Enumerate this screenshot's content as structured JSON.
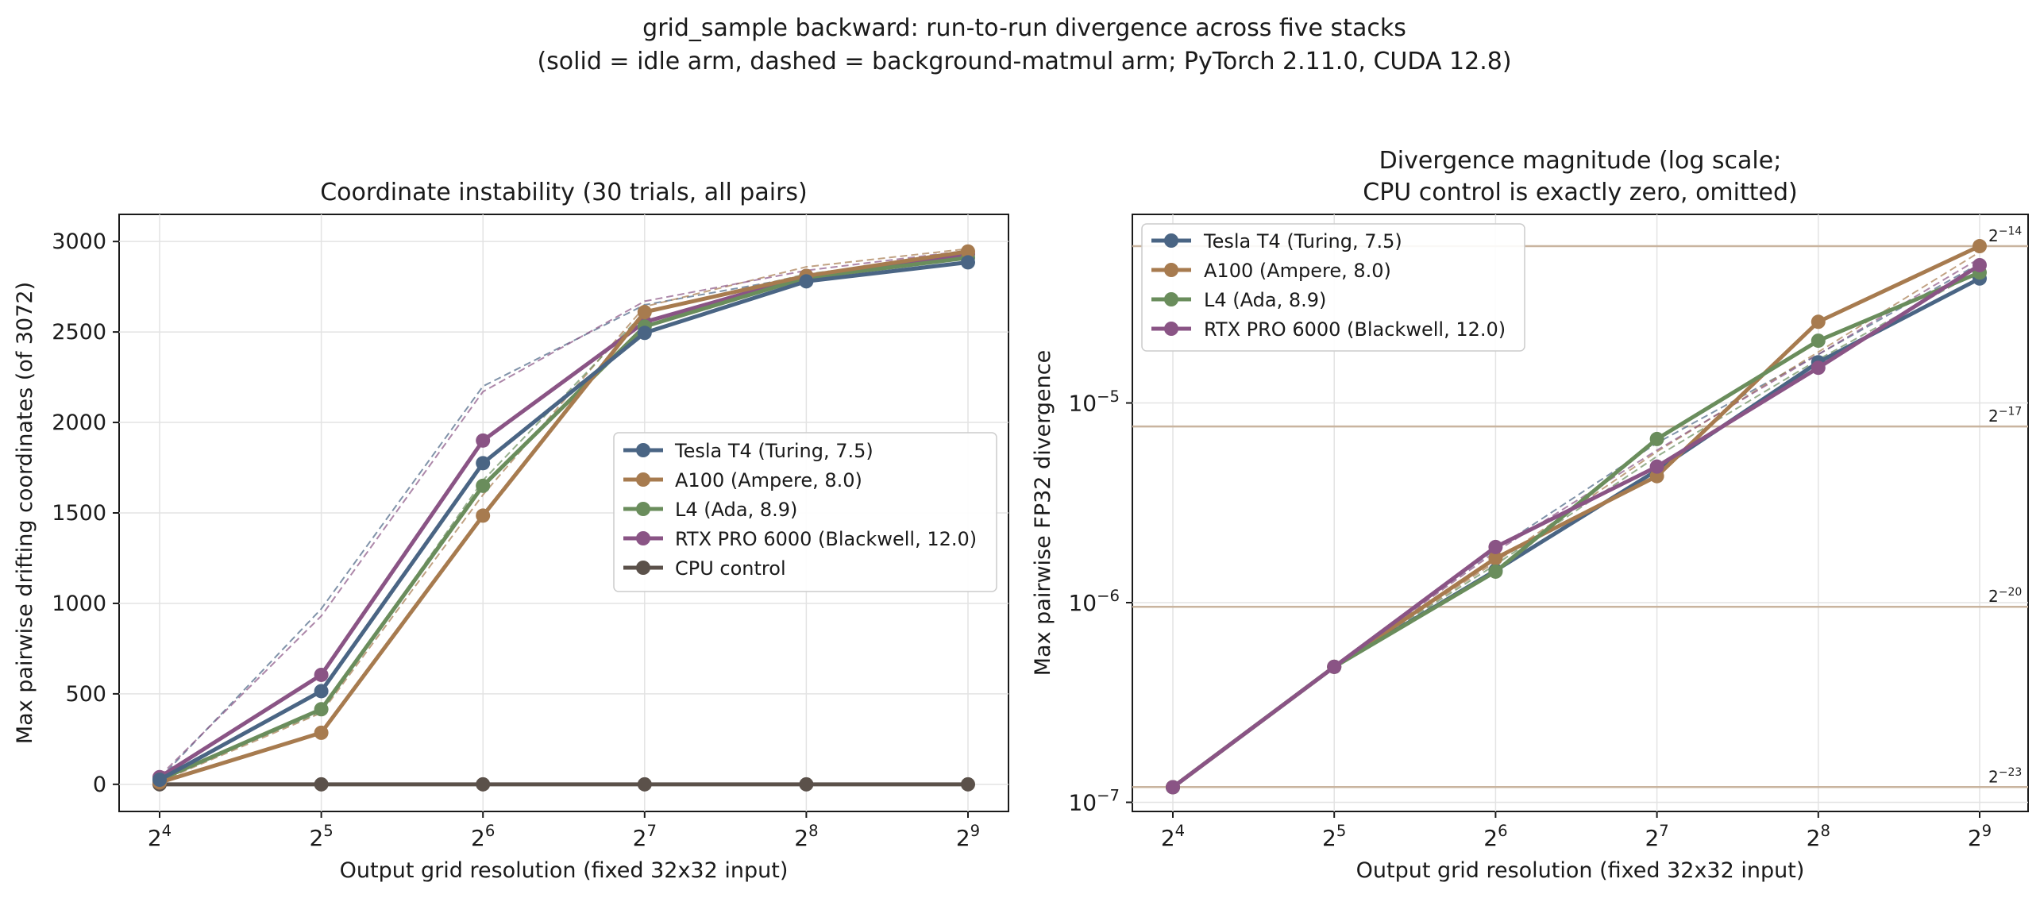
{
  "figure": {
    "title_line1": "grid_sample backward: run-to-run divergence across five stacks",
    "title_line2": "(solid = idle arm, dashed = background-matmul arm; PyTorch 2.11.0, CUDA 12.8)"
  },
  "chart_data": [
    {
      "type": "line",
      "title": "Coordinate instability (30 trials, all pairs)",
      "xlabel": "Output grid resolution (fixed 32x32 input)",
      "ylabel": "Max pairwise drifting coordinates (of 3072)",
      "x_exponents": [
        4,
        5,
        6,
        7,
        8,
        9
      ],
      "x": [
        16,
        32,
        64,
        128,
        256,
        512
      ],
      "xscale": "log2",
      "ylim": [
        -150,
        3150
      ],
      "yticks": [
        0,
        500,
        1000,
        1500,
        2000,
        2500,
        3000
      ],
      "grid": true,
      "legend_position": "center-right",
      "series": [
        {
          "name": "Tesla T4 (Turing, 7.5)",
          "color": "#4a6584",
          "values": [
            25,
            515,
            1775,
            2495,
            2780,
            2885
          ],
          "dashed_values": [
            30,
            970,
            2200,
            2650,
            2810,
            2920
          ]
        },
        {
          "name": "A100 (Ampere, 8.0)",
          "color": "#a77b4f",
          "values": [
            10,
            285,
            1485,
            2610,
            2810,
            2945
          ],
          "dashed_values": [
            15,
            395,
            1600,
            2640,
            2860,
            2960
          ]
        },
        {
          "name": "L4 (Ada, 8.9)",
          "color": "#6a8d5c",
          "values": [
            25,
            415,
            1650,
            2530,
            2800,
            2910
          ],
          "dashed_values": [
            30,
            400,
            1680,
            2610,
            2820,
            2930
          ]
        },
        {
          "name": "RTX PRO 6000 (Blackwell, 12.0)",
          "color": "#8a5485",
          "values": [
            40,
            605,
            1900,
            2555,
            2810,
            2930
          ],
          "dashed_values": [
            45,
            930,
            2170,
            2670,
            2840,
            2950
          ]
        },
        {
          "name": "CPU control",
          "color": "#5b514a",
          "values": [
            0,
            0,
            0,
            0,
            0,
            0
          ],
          "dashed_values": [
            0,
            0,
            0,
            0,
            0,
            0
          ]
        }
      ]
    },
    {
      "type": "line",
      "title_line1": "Divergence magnitude (log scale;",
      "title_line2": "CPU control is exactly zero, omitted)",
      "xlabel": "Output grid resolution (fixed 32x32 input)",
      "ylabel": "Max pairwise FP32 divergence",
      "x_exponents": [
        4,
        5,
        6,
        7,
        8,
        9
      ],
      "x": [
        16,
        32,
        64,
        128,
        256,
        512
      ],
      "xscale": "log2",
      "yscale": "log10",
      "ylim": [
        9e-08,
        8.8e-05
      ],
      "yticks_exp": [
        -7,
        -6,
        -5
      ],
      "reference_lines": [
        {
          "base": "2",
          "exponent": "−14",
          "value": 6.1035e-05
        },
        {
          "base": "2",
          "exponent": "−17",
          "value": 7.6294e-06
        },
        {
          "base": "2",
          "exponent": "−20",
          "value": 9.5367e-07
        },
        {
          "base": "2",
          "exponent": "−23",
          "value": 1.1921e-07
        }
      ],
      "reference_color": "#c9b49f",
      "grid": true,
      "legend_position": "top-left",
      "series": [
        {
          "name": "Tesla T4 (Turing, 7.5)",
          "color": "#4a6584",
          "values": [
            1.19e-07,
            4.77e-07,
            1.45e-06,
            4.6e-06,
            1.6e-05,
            4.2e-05
          ],
          "dashed_values": [
            1.19e-07,
            4.77e-07,
            1.85e-06,
            6.3e-06,
            1.75e-05,
            5e-05
          ]
        },
        {
          "name": "A100 (Ampere, 8.0)",
          "color": "#a77b4f",
          "values": [
            1.19e-07,
            4.77e-07,
            1.67e-06,
            4.3e-06,
            2.55e-05,
            6.1e-05
          ],
          "dashed_values": [
            1.19e-07,
            4.77e-07,
            1.6e-06,
            5.7e-06,
            1.8e-05,
            5.7e-05
          ]
        },
        {
          "name": "L4 (Ada, 8.9)",
          "color": "#6a8d5c",
          "values": [
            1.19e-07,
            4.77e-07,
            1.43e-06,
            6.6e-06,
            2.05e-05,
            4.5e-05
          ],
          "dashed_values": [
            1.19e-07,
            4.77e-07,
            1.55e-06,
            5.4e-06,
            1.65e-05,
            4.6e-05
          ]
        },
        {
          "name": "RTX PRO 6000 (Blackwell, 12.0)",
          "color": "#8a5485",
          "values": [
            1.19e-07,
            4.77e-07,
            1.9e-06,
            4.8e-06,
            1.5e-05,
            4.9e-05
          ],
          "dashed_values": [
            1.19e-07,
            4.77e-07,
            1.8e-06,
            5.8e-06,
            1.75e-05,
            5.3e-05
          ]
        }
      ]
    }
  ]
}
